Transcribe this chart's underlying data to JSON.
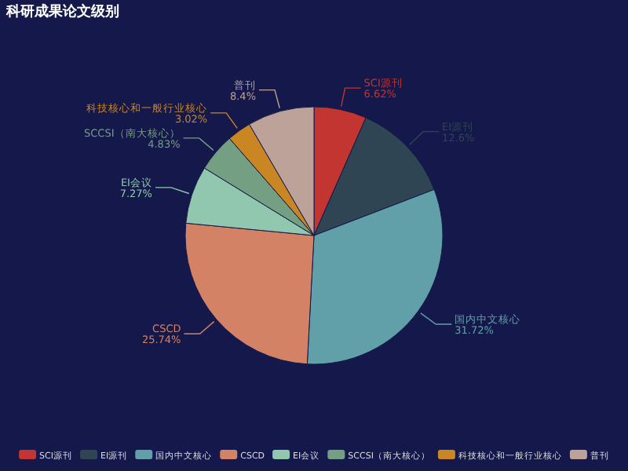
{
  "chart_data": {
    "type": "pie",
    "title": "科研成果论文级别",
    "categories": [
      "SCI源刊",
      "EI源刊",
      "国内中文核心",
      "CSCD",
      "EI会议",
      "SCCSI（南大核心）",
      "科技核心和一般行业核心",
      "普刊"
    ],
    "values": [
      6.62,
      12.6,
      31.72,
      25.74,
      7.27,
      4.83,
      3.02,
      8.4
    ],
    "value_labels": [
      "6.62%",
      "12.6%",
      "31.72%",
      "25.74%",
      "7.27%",
      "4.83%",
      "3.02%",
      "8.4%"
    ],
    "colors": [
      "#c23531",
      "#2f4554",
      "#61a0a8",
      "#d48265",
      "#91c7ae",
      "#749f83",
      "#ca8622",
      "#bda29a"
    ],
    "legend": "bottom"
  }
}
